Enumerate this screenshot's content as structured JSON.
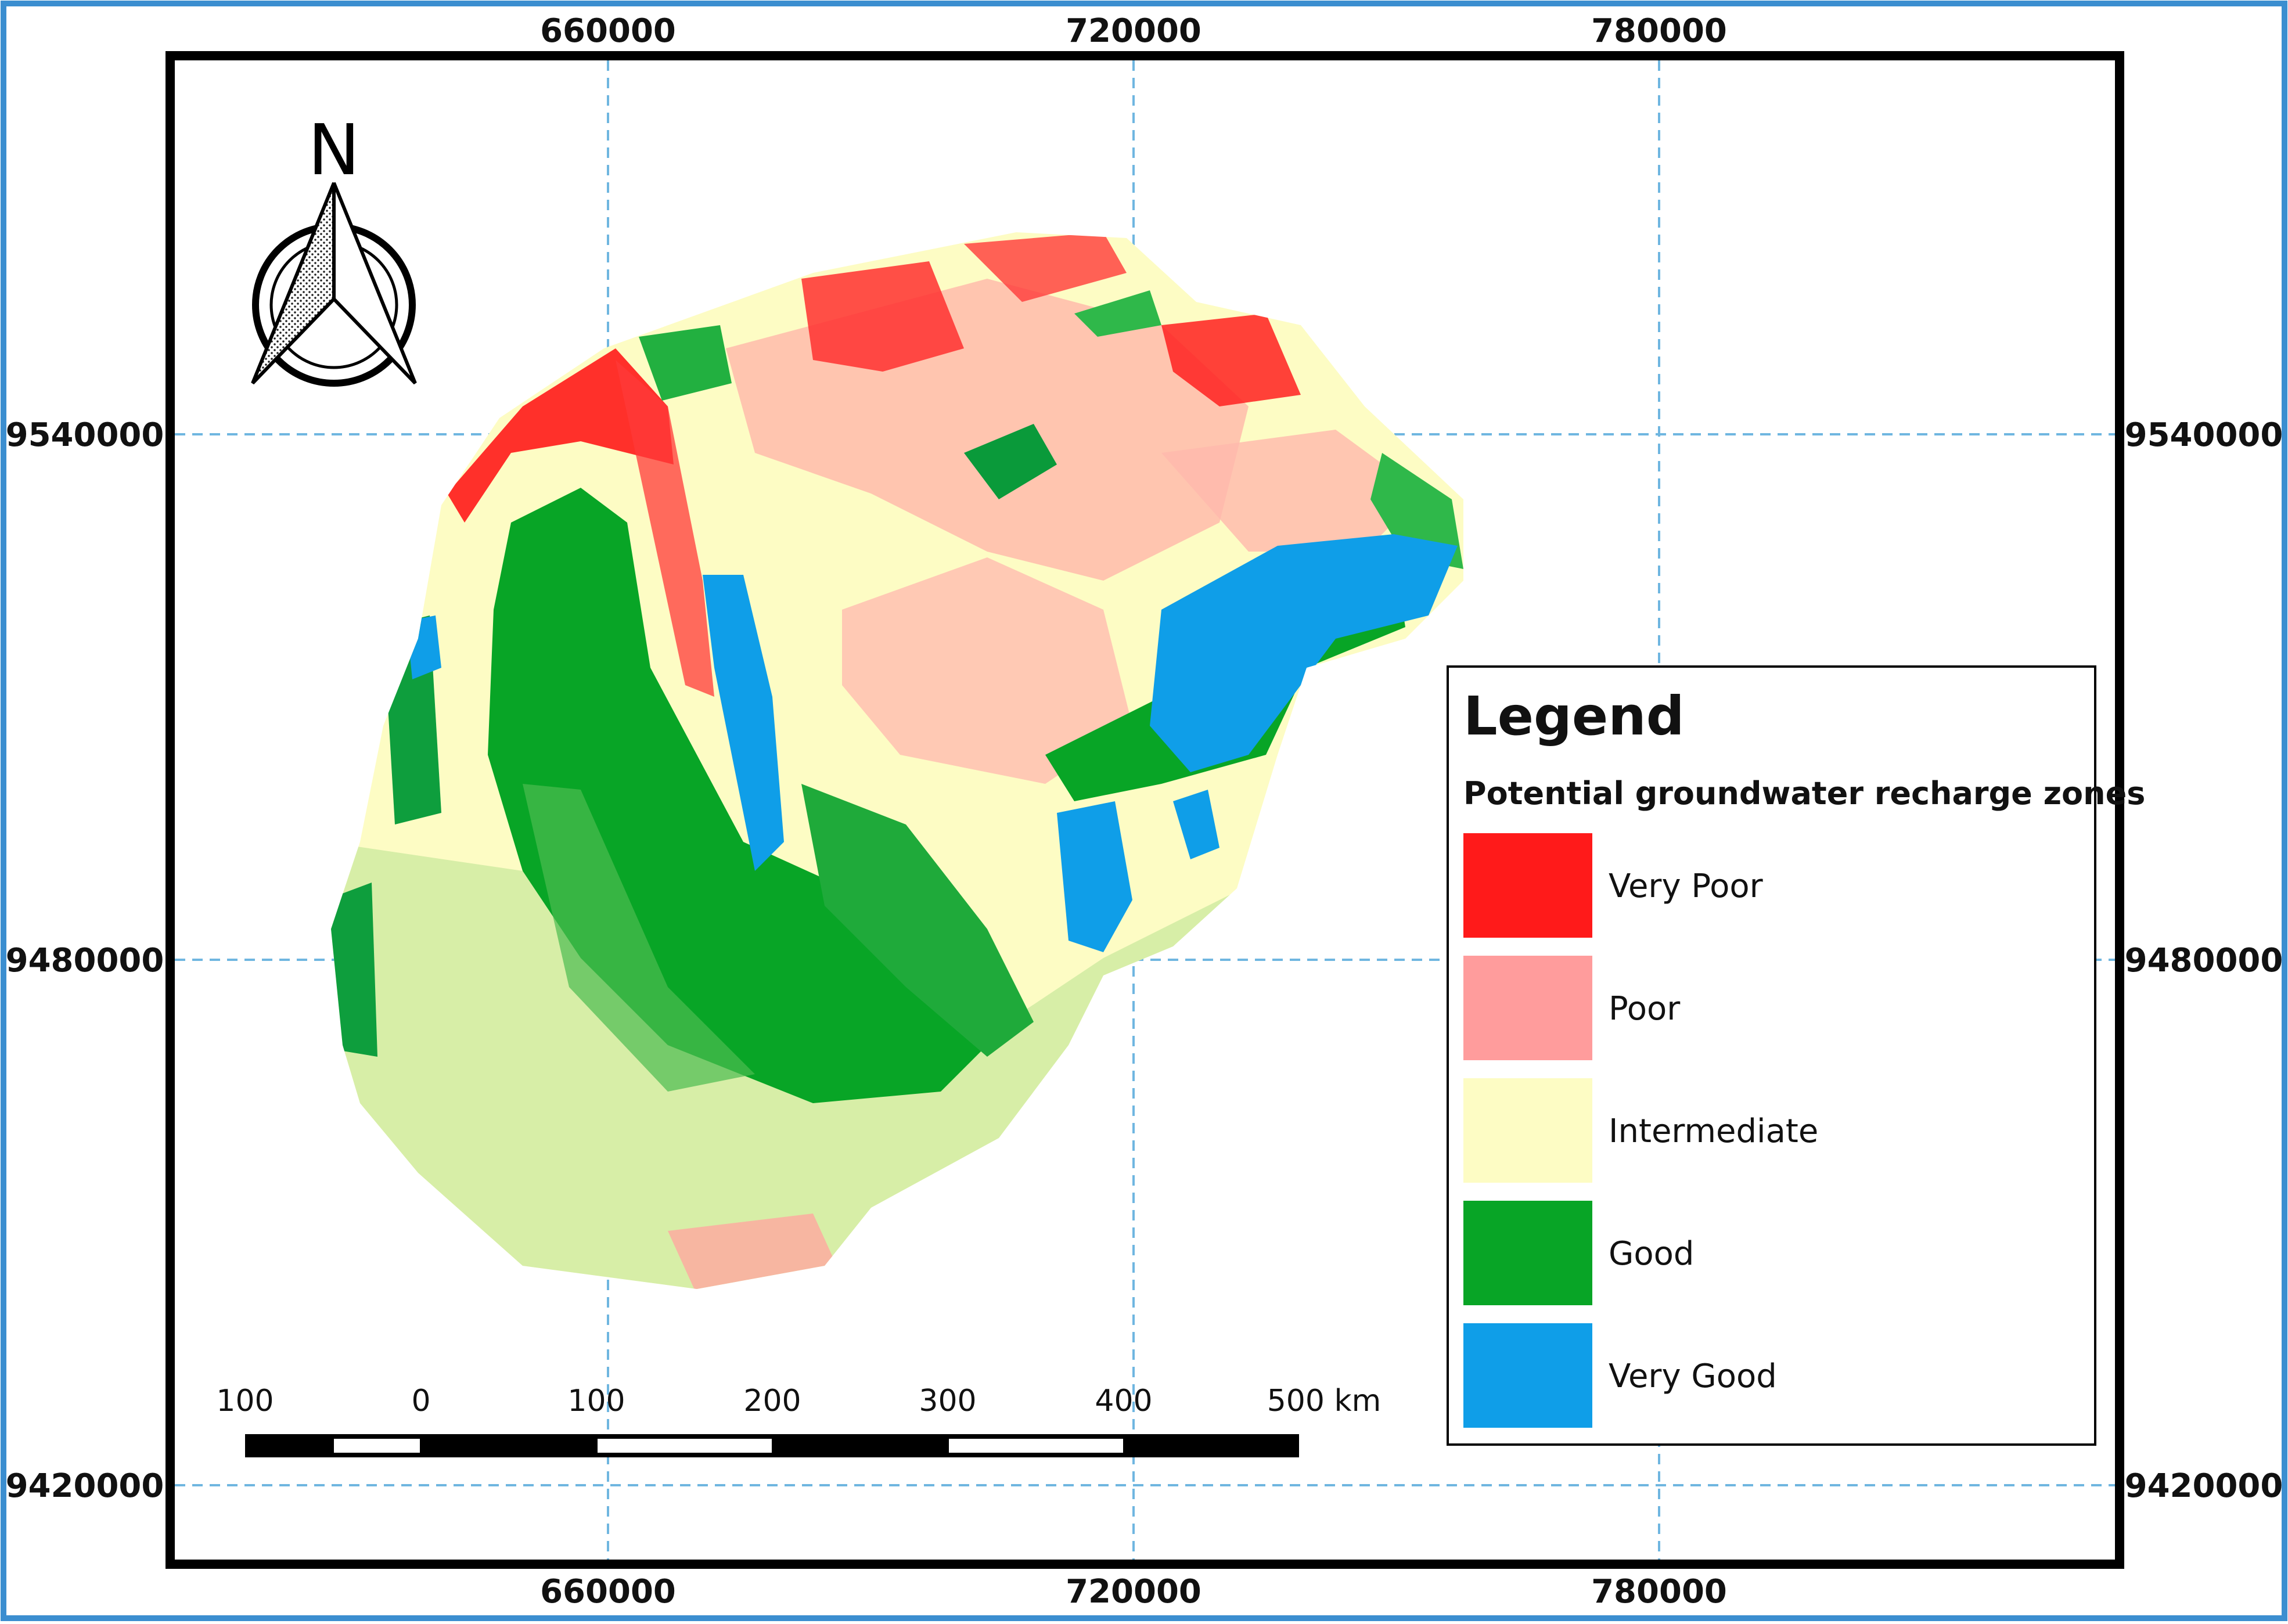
{
  "map": {
    "grid_color": "#6fb6e0",
    "frame_color": "#000000",
    "outer_border_color": "#3b8ed0",
    "top_x_labels": [
      "660000",
      "720000",
      "780000"
    ],
    "bottom_x_labels": [
      "660000",
      "720000",
      "780000"
    ],
    "left_y_labels": [
      "9540000",
      "9480000",
      "9420000"
    ],
    "right_y_labels": [
      "9540000",
      "9480000",
      "9420000"
    ]
  },
  "north_arrow": {
    "letter": "N",
    "icon": "north-arrow-icon"
  },
  "scale_bar": {
    "labels": [
      "100",
      "0",
      "100",
      "200",
      "300",
      "400",
      "500 km"
    ]
  },
  "legend": {
    "title": "Legend",
    "subtitle": "Potential groundwater recharge zones",
    "items": [
      {
        "label": "Very Poor",
        "color": "#ff1a1a"
      },
      {
        "label": "Poor",
        "color": "#ff9c9c"
      },
      {
        "label": "Intermediate",
        "color": "#fdfcc4"
      },
      {
        "label": "Good",
        "color": "#08a526"
      },
      {
        "label": "Very Good",
        "color": "#0f9ee8"
      }
    ]
  },
  "zone_colors": {
    "very_poor": "#ff1a1a",
    "poor": "#ff9c9c",
    "intermediate": "#fdfcc4",
    "light_good": "#b5e39a",
    "good": "#08a526",
    "very_good": "#0f9ee8"
  }
}
